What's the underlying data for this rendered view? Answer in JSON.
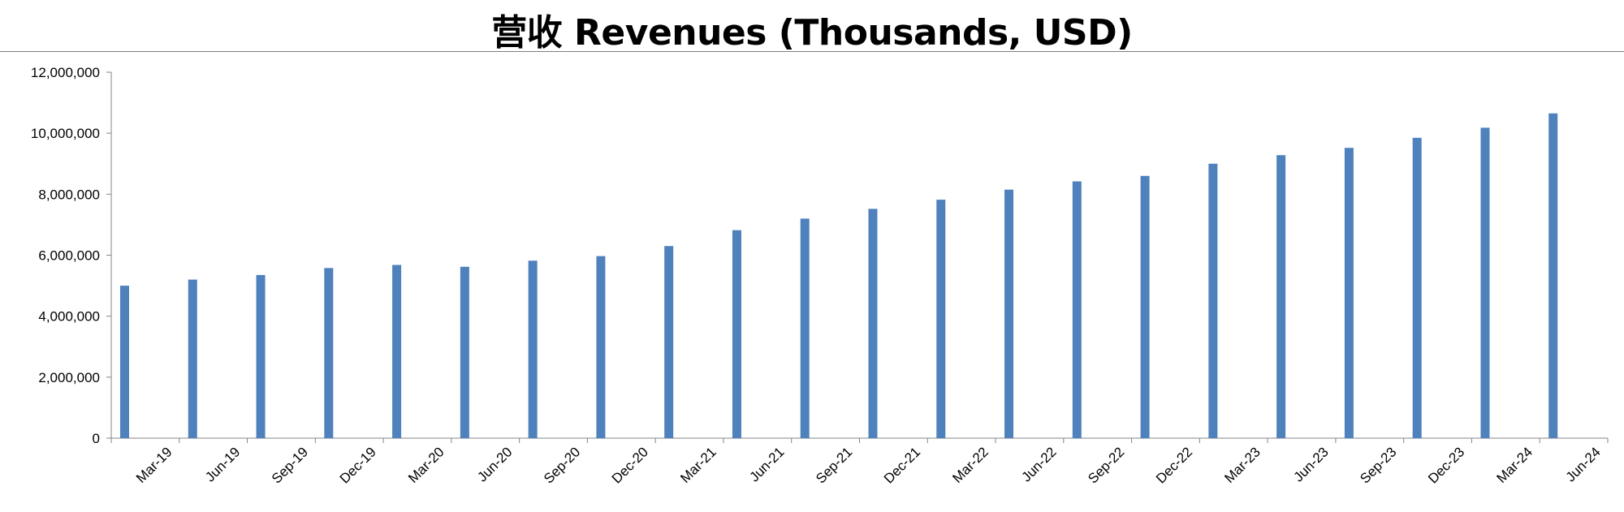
{
  "chart_data": {
    "type": "bar",
    "title": "营收 Revenues (Thousands, USD)",
    "xlabel": "",
    "ylabel": "",
    "ylim": [
      0,
      12000000
    ],
    "yticks": [
      0,
      2000000,
      4000000,
      6000000,
      8000000,
      10000000,
      12000000
    ],
    "ytick_labels": [
      "0",
      "2,000,000",
      "4,000,000",
      "6,000,000",
      "8,000,000",
      "10,000,000",
      "12,000,000"
    ],
    "grid": false,
    "legend": "none",
    "bar_color": "#4f81bd",
    "categories": [
      "Mar-19",
      "Jun-19",
      "Sep-19",
      "Dec-19",
      "Mar-20",
      "Jun-20",
      "Sep-20",
      "Dec-20",
      "Mar-21",
      "Jun-21",
      "Sep-21",
      "Dec-21",
      "Mar-22",
      "Jun-22",
      "Sep-22",
      "Dec-22",
      "Mar-23",
      "Jun-23",
      "Sep-23",
      "Dec-23",
      "Mar-24",
      "Jun-24"
    ],
    "values": [
      5000000,
      5200000,
      5350000,
      5580000,
      5680000,
      5620000,
      5820000,
      5970000,
      6300000,
      6820000,
      7200000,
      7520000,
      7820000,
      8150000,
      8420000,
      8600000,
      9000000,
      9280000,
      9520000,
      9850000,
      10180000,
      10650000
    ]
  }
}
